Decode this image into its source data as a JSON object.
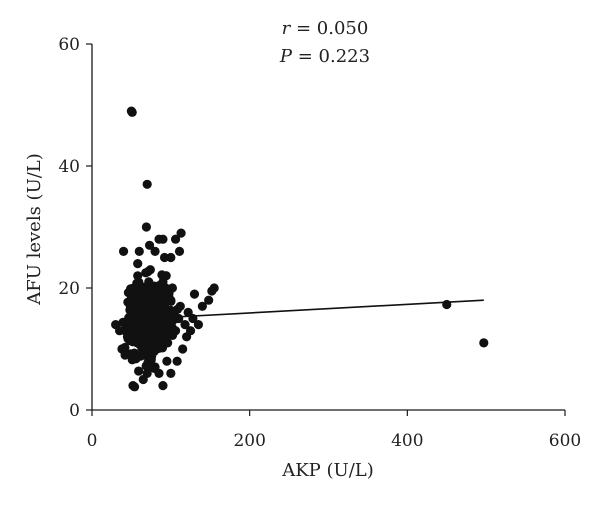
{
  "chart_data": {
    "type": "scatter",
    "title": "",
    "xlabel": "AKP (U/L)",
    "ylabel": "AFU levels (U/L)",
    "xlim": [
      0,
      600
    ],
    "ylim": [
      0,
      60
    ],
    "xticks": [
      0,
      200,
      400,
      600
    ],
    "yticks": [
      0,
      20,
      40,
      60
    ],
    "grid": false,
    "legend": "none",
    "annotations": {
      "r_symbol": "r",
      "r_text": " = 0.050",
      "p_symbol": "P",
      "p_text": " = 0.223"
    },
    "point_color": "#111111",
    "points": [
      [
        50,
        49
      ],
      [
        51,
        48.8
      ],
      [
        70,
        37
      ],
      [
        69,
        30
      ],
      [
        113,
        29
      ],
      [
        106,
        28
      ],
      [
        85,
        28
      ],
      [
        90,
        28
      ],
      [
        40,
        26
      ],
      [
        60,
        26
      ],
      [
        80,
        26
      ],
      [
        100,
        25
      ],
      [
        111,
        26
      ],
      [
        92,
        25
      ],
      [
        58,
        24
      ],
      [
        73,
        27
      ],
      [
        155,
        20
      ],
      [
        152,
        19.5
      ],
      [
        148,
        18
      ],
      [
        130,
        19
      ],
      [
        140,
        17
      ],
      [
        135,
        14
      ],
      [
        128,
        15
      ],
      [
        120,
        12
      ],
      [
        115,
        10
      ],
      [
        108,
        8
      ],
      [
        100,
        6
      ],
      [
        90,
        4
      ],
      [
        52,
        4
      ],
      [
        54,
        3.8
      ],
      [
        65,
        5
      ],
      [
        70,
        6
      ],
      [
        75,
        7
      ],
      [
        85,
        6
      ],
      [
        95,
        8
      ],
      [
        30,
        14
      ],
      [
        35,
        13
      ],
      [
        38,
        10
      ],
      [
        42,
        9
      ],
      [
        45,
        12
      ],
      [
        48,
        15
      ],
      [
        50,
        18
      ],
      [
        55,
        20
      ],
      [
        58,
        22
      ],
      [
        60,
        17
      ],
      [
        62,
        14
      ],
      [
        64,
        11
      ],
      [
        66,
        9
      ],
      [
        68,
        16
      ],
      [
        70,
        19
      ],
      [
        72,
        21
      ],
      [
        74,
        23
      ],
      [
        76,
        18
      ],
      [
        78,
        15
      ],
      [
        80,
        12
      ],
      [
        82,
        10
      ],
      [
        84,
        13
      ],
      [
        86,
        16
      ],
      [
        88,
        19
      ],
      [
        90,
        21
      ],
      [
        92,
        17
      ],
      [
        94,
        14
      ],
      [
        96,
        11
      ],
      [
        98,
        15
      ],
      [
        100,
        18
      ],
      [
        102,
        20
      ],
      [
        104,
        16
      ],
      [
        106,
        13
      ],
      [
        110,
        15
      ],
      [
        112,
        17
      ],
      [
        118,
        14
      ],
      [
        122,
        16
      ],
      [
        125,
        13
      ],
      [
        450,
        17.3
      ],
      [
        497,
        11
      ]
    ],
    "fit_line": {
      "x": [
        70,
        497
      ],
      "y": [
        15.0,
        18.0
      ]
    }
  }
}
